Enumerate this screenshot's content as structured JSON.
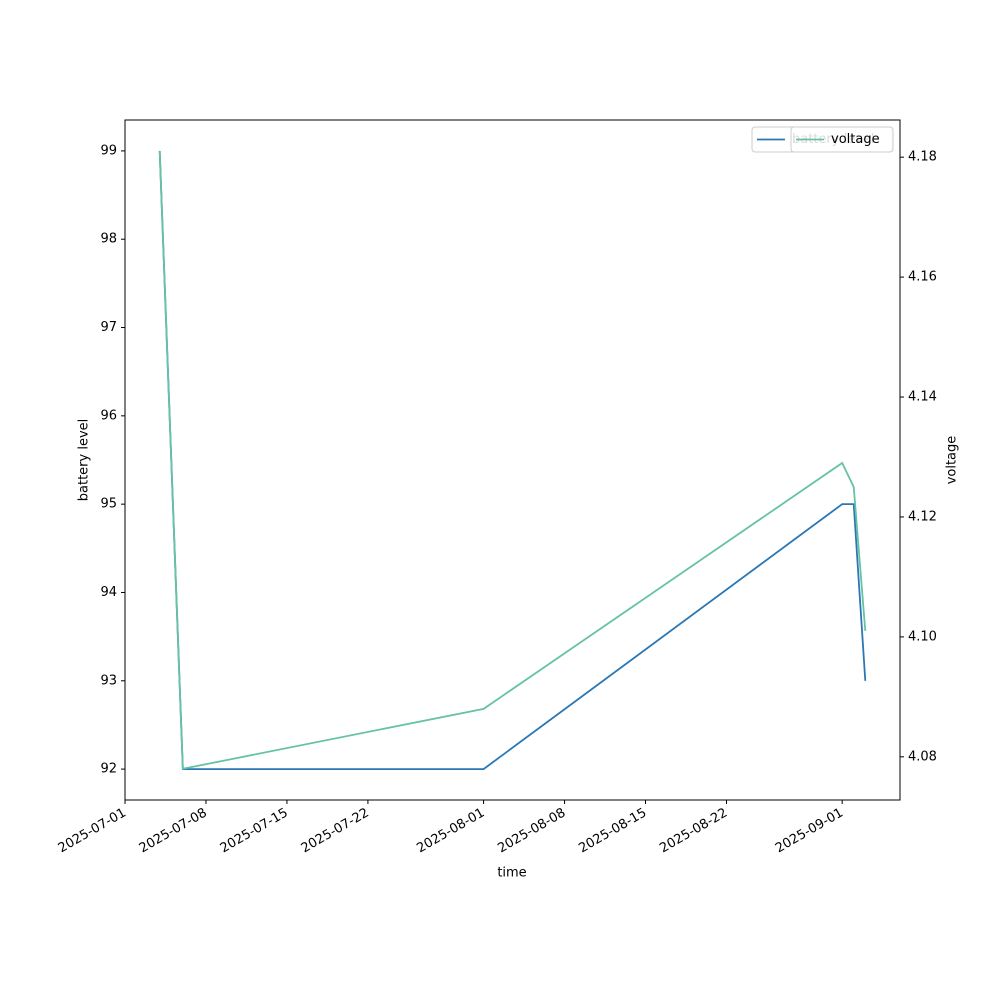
{
  "chart_data": {
    "type": "line",
    "x_label": "time",
    "y_label": "battery level",
    "y2_label": "voltage",
    "x": [
      "2025-07-04",
      "2025-07-06",
      "2025-08-01",
      "2025-09-01",
      "2025-09-02",
      "2025-09-03"
    ],
    "series": [
      {
        "name": "battery level",
        "color": "#2a77b4",
        "values": [
          99,
          92,
          92,
          95,
          95,
          93
        ]
      },
      {
        "name": "voltage",
        "color": "#66c2a5",
        "axis": "y2",
        "values": [
          4.181,
          4.078,
          4.088,
          4.129,
          4.125,
          4.101
        ]
      }
    ],
    "xlim": [
      "2025-07-01",
      "2025-09-06"
    ],
    "xticks": [
      "2025-07-01",
      "2025-07-08",
      "2025-07-15",
      "2025-07-22",
      "2025-08-01",
      "2025-08-08",
      "2025-08-15",
      "2025-08-22",
      "2025-09-01"
    ],
    "ylim": [
      91.65,
      99.35
    ],
    "yticks": [
      92,
      93,
      94,
      95,
      96,
      97,
      98,
      99
    ],
    "y2lim": [
      4.0728,
      4.1862
    ],
    "y2ticks": [
      4.08,
      {
        "value": 4.1,
        "label": "4.10"
      },
      4.12,
      4.14,
      4.16,
      4.18
    ],
    "legend": "upper right",
    "grid": false
  }
}
